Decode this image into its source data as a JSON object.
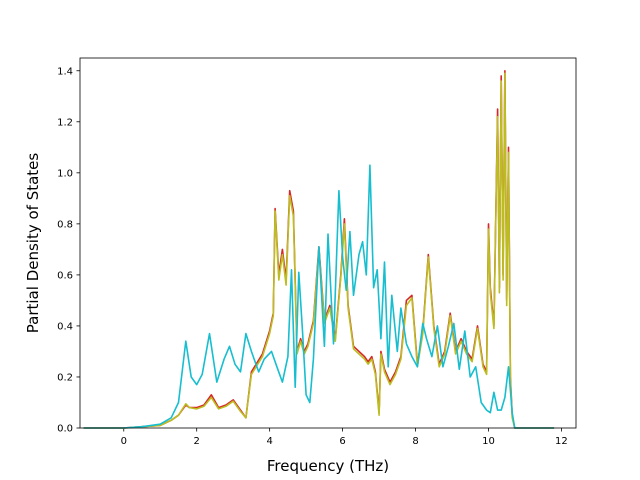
{
  "chart_data": {
    "type": "line",
    "title": "",
    "xlabel": "Frequency (THz)",
    "ylabel": "Partial Density of States",
    "xlim": [
      -1.2,
      12.4
    ],
    "ylim": [
      0.0,
      1.45
    ],
    "xticks": [
      0,
      2,
      4,
      6,
      8,
      10,
      12
    ],
    "yticks": [
      0.0,
      0.2,
      0.4,
      0.6,
      0.8,
      1.0,
      1.2,
      1.4
    ],
    "xtick_labels": [
      "0",
      "2",
      "4",
      "6",
      "8",
      "10",
      "12"
    ],
    "ytick_labels": [
      "0.0",
      "0.2",
      "0.4",
      "0.6",
      "0.8",
      "1.0",
      "1.2",
      "1.4"
    ],
    "grid": false,
    "legend": false,
    "series": [
      {
        "color": "#d62728",
        "x": [
          -1.1,
          0.0,
          0.5,
          1.0,
          1.3,
          1.5,
          1.7,
          1.8,
          2.0,
          2.2,
          2.4,
          2.6,
          2.8,
          3.0,
          3.2,
          3.35,
          3.5,
          3.8,
          4.0,
          4.1,
          4.15,
          4.25,
          4.35,
          4.45,
          4.55,
          4.65,
          4.75,
          4.85,
          4.95,
          5.05,
          5.2,
          5.35,
          5.5,
          5.65,
          5.8,
          5.95,
          6.05,
          6.15,
          6.3,
          6.45,
          6.6,
          6.7,
          6.8,
          6.9,
          7.0,
          7.05,
          7.15,
          7.3,
          7.45,
          7.6,
          7.75,
          7.9,
          8.05,
          8.2,
          8.35,
          8.5,
          8.65,
          8.8,
          8.95,
          9.1,
          9.25,
          9.4,
          9.55,
          9.7,
          9.85,
          9.95,
          10.0,
          10.05,
          10.15,
          10.25,
          10.3,
          10.35,
          10.4,
          10.45,
          10.5,
          10.55,
          10.6,
          10.65,
          10.72,
          10.75,
          11.8
        ],
        "values": [
          0.0,
          0.0,
          0.005,
          0.01,
          0.03,
          0.05,
          0.09,
          0.08,
          0.08,
          0.09,
          0.13,
          0.08,
          0.09,
          0.11,
          0.07,
          0.04,
          0.22,
          0.29,
          0.38,
          0.45,
          0.86,
          0.6,
          0.7,
          0.58,
          0.93,
          0.85,
          0.3,
          0.35,
          0.3,
          0.33,
          0.42,
          0.71,
          0.42,
          0.48,
          0.35,
          0.6,
          0.82,
          0.48,
          0.32,
          0.3,
          0.28,
          0.26,
          0.28,
          0.22,
          0.06,
          0.3,
          0.23,
          0.18,
          0.22,
          0.28,
          0.5,
          0.52,
          0.25,
          0.38,
          0.68,
          0.4,
          0.25,
          0.3,
          0.45,
          0.3,
          0.35,
          0.3,
          0.27,
          0.4,
          0.25,
          0.22,
          0.8,
          0.55,
          0.4,
          1.25,
          0.55,
          1.38,
          0.6,
          1.4,
          0.5,
          1.1,
          0.2,
          0.05,
          0.0,
          0.0,
          0.0
        ]
      },
      {
        "color": "#bcbd22",
        "x": [
          -1.1,
          0.0,
          0.5,
          1.0,
          1.3,
          1.5,
          1.7,
          1.8,
          2.0,
          2.2,
          2.4,
          2.6,
          2.8,
          3.0,
          3.2,
          3.35,
          3.5,
          3.8,
          4.0,
          4.1,
          4.15,
          4.25,
          4.35,
          4.45,
          4.55,
          4.65,
          4.75,
          4.85,
          4.95,
          5.05,
          5.2,
          5.35,
          5.5,
          5.65,
          5.8,
          5.95,
          6.05,
          6.15,
          6.3,
          6.45,
          6.6,
          6.7,
          6.8,
          6.9,
          7.0,
          7.05,
          7.15,
          7.3,
          7.45,
          7.6,
          7.75,
          7.9,
          8.05,
          8.2,
          8.35,
          8.5,
          8.65,
          8.8,
          8.95,
          9.1,
          9.25,
          9.4,
          9.55,
          9.7,
          9.85,
          9.95,
          10.0,
          10.05,
          10.15,
          10.25,
          10.3,
          10.35,
          10.4,
          10.45,
          10.5,
          10.55,
          10.6,
          10.65,
          10.72,
          10.75,
          11.8
        ],
        "values": [
          0.0,
          0.0,
          0.005,
          0.01,
          0.03,
          0.05,
          0.095,
          0.08,
          0.075,
          0.085,
          0.12,
          0.075,
          0.085,
          0.105,
          0.065,
          0.04,
          0.21,
          0.28,
          0.37,
          0.44,
          0.85,
          0.58,
          0.68,
          0.56,
          0.91,
          0.83,
          0.29,
          0.34,
          0.29,
          0.32,
          0.41,
          0.7,
          0.41,
          0.47,
          0.34,
          0.59,
          0.8,
          0.47,
          0.31,
          0.29,
          0.27,
          0.25,
          0.27,
          0.21,
          0.05,
          0.29,
          0.22,
          0.17,
          0.21,
          0.27,
          0.48,
          0.51,
          0.24,
          0.37,
          0.67,
          0.39,
          0.24,
          0.29,
          0.44,
          0.29,
          0.34,
          0.29,
          0.26,
          0.39,
          0.24,
          0.21,
          0.78,
          0.53,
          0.39,
          1.22,
          0.53,
          1.36,
          0.58,
          1.39,
          0.48,
          1.08,
          0.19,
          0.04,
          0.0,
          0.0,
          0.0
        ]
      },
      {
        "color": "#17becf",
        "x": [
          -1.1,
          0.0,
          0.5,
          1.0,
          1.3,
          1.5,
          1.7,
          1.85,
          2.0,
          2.15,
          2.35,
          2.55,
          2.75,
          2.9,
          3.05,
          3.2,
          3.35,
          3.5,
          3.7,
          3.85,
          4.05,
          4.2,
          4.35,
          4.5,
          4.6,
          4.7,
          4.8,
          4.9,
          5.0,
          5.1,
          5.2,
          5.35,
          5.5,
          5.6,
          5.75,
          5.9,
          6.0,
          6.1,
          6.2,
          6.3,
          6.45,
          6.55,
          6.65,
          6.75,
          6.85,
          6.95,
          7.05,
          7.15,
          7.25,
          7.35,
          7.5,
          7.6,
          7.75,
          7.9,
          8.05,
          8.2,
          8.3,
          8.45,
          8.6,
          8.75,
          8.9,
          9.05,
          9.2,
          9.35,
          9.5,
          9.65,
          9.8,
          9.95,
          10.05,
          10.15,
          10.25,
          10.35,
          10.45,
          10.55,
          10.65,
          10.72,
          10.75,
          11.8
        ],
        "values": [
          0.0,
          0.0,
          0.005,
          0.015,
          0.04,
          0.1,
          0.34,
          0.2,
          0.17,
          0.21,
          0.37,
          0.18,
          0.27,
          0.32,
          0.25,
          0.22,
          0.37,
          0.3,
          0.22,
          0.27,
          0.3,
          0.24,
          0.18,
          0.28,
          0.62,
          0.16,
          0.61,
          0.38,
          0.13,
          0.1,
          0.27,
          0.71,
          0.32,
          0.76,
          0.33,
          0.93,
          0.67,
          0.54,
          0.77,
          0.52,
          0.68,
          0.73,
          0.6,
          1.03,
          0.55,
          0.62,
          0.35,
          0.65,
          0.24,
          0.52,
          0.3,
          0.47,
          0.33,
          0.28,
          0.24,
          0.41,
          0.35,
          0.28,
          0.4,
          0.24,
          0.32,
          0.41,
          0.23,
          0.38,
          0.2,
          0.24,
          0.1,
          0.07,
          0.06,
          0.14,
          0.07,
          0.07,
          0.12,
          0.24,
          0.06,
          0.0,
          0.0,
          0.0
        ]
      }
    ]
  }
}
